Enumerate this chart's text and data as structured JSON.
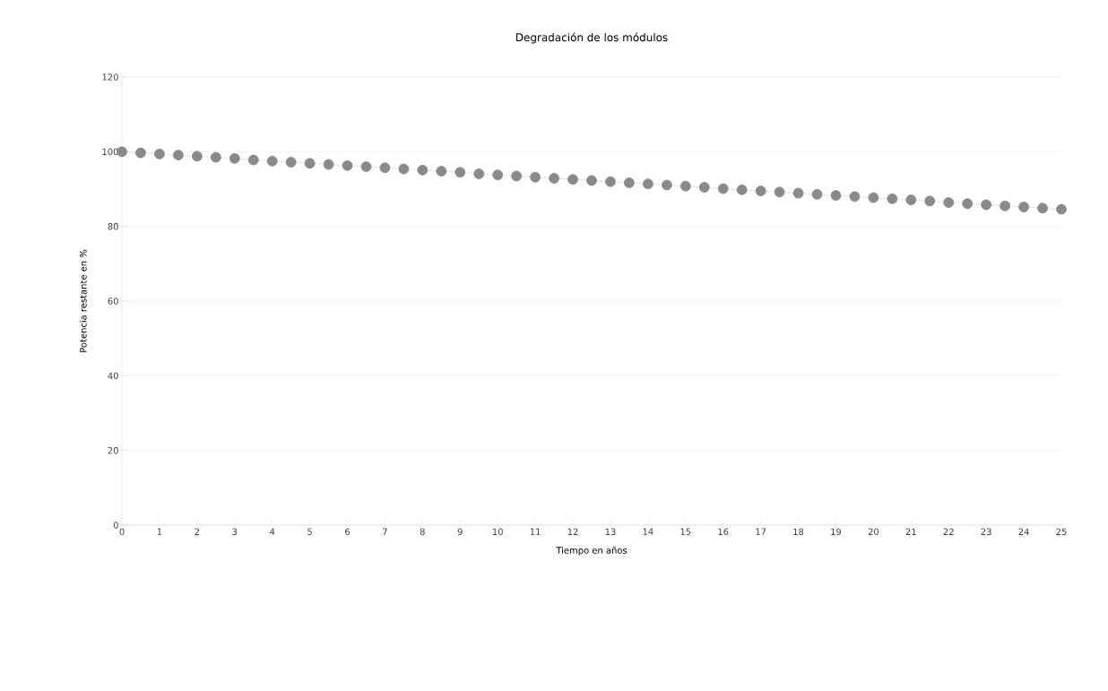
{
  "chart_data": {
    "type": "line",
    "title": "Degradación de los módulos",
    "xlabel": "Tiempo en años",
    "ylabel": "Potencia restante en %",
    "x": [
      0,
      0.5,
      1,
      1.5,
      2,
      2.5,
      3,
      3.5,
      4,
      4.5,
      5,
      5.5,
      6,
      6.5,
      7,
      7.5,
      8,
      8.5,
      9,
      9.5,
      10,
      10.5,
      11,
      11.5,
      12,
      12.5,
      13,
      13.5,
      14,
      14.5,
      15,
      15.5,
      16,
      16.5,
      17,
      17.5,
      18,
      18.5,
      19,
      19.5,
      20,
      20.5,
      21,
      21.5,
      22,
      22.5,
      23,
      23.5,
      24,
      24.5,
      25
    ],
    "series": [
      {
        "color": "#8a8a8a",
        "values": [
          100,
          99.7,
          99.4,
          99.1,
          98.8,
          98.5,
          98.2,
          97.8,
          97.5,
          97.2,
          96.9,
          96.6,
          96.3,
          96.0,
          95.7,
          95.4,
          95.1,
          94.8,
          94.5,
          94.1,
          93.8,
          93.5,
          93.2,
          92.9,
          92.6,
          92.3,
          92.0,
          91.7,
          91.4,
          91.1,
          90.8,
          90.5,
          90.1,
          89.8,
          89.5,
          89.2,
          88.9,
          88.6,
          88.3,
          88.0,
          87.7,
          87.4,
          87.1,
          86.8,
          86.4,
          86.1,
          85.8,
          85.5,
          85.2,
          84.9,
          84.6
        ]
      }
    ],
    "xlim": [
      0,
      25
    ],
    "xticks": [
      0,
      1,
      2,
      3,
      4,
      5,
      6,
      7,
      8,
      9,
      10,
      11,
      12,
      13,
      14,
      15,
      16,
      17,
      18,
      19,
      20,
      21,
      22,
      23,
      24,
      25
    ],
    "ylim": [
      0,
      120
    ],
    "yticks": [
      0,
      20,
      40,
      60,
      80,
      100,
      120
    ],
    "grid": "y",
    "marker": "circle",
    "line_style": "dotted"
  }
}
